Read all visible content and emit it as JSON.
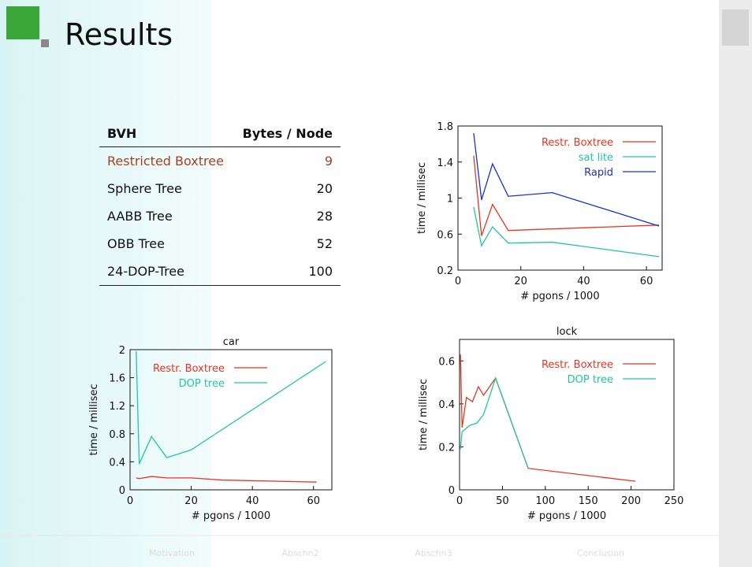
{
  "header": {
    "title": "Results"
  },
  "table": {
    "header": [
      "BVH",
      "Bytes / Node"
    ],
    "rows": [
      [
        "Restricted Boxtree",
        9
      ],
      [
        "Sphere Tree",
        20
      ],
      [
        "AABB Tree",
        28
      ],
      [
        "OBB Tree",
        52
      ],
      [
        "24-DOP-Tree",
        100
      ]
    ]
  },
  "chart_data": [
    {
      "type": "line",
      "xlabel": "# pgons / 1000",
      "ylabel": "time / millisec",
      "xlim": [
        0,
        65
      ],
      "xticks": [
        0,
        20,
        40,
        60
      ],
      "ylim": [
        0.2,
        1.8
      ],
      "yticks": [
        0.2,
        0.6,
        1,
        1.4,
        1.8
      ],
      "series": [
        {
          "name": "Restr. Boxtree",
          "color": "#e8351f",
          "x": [
            5,
            7.5,
            11,
            16,
            64
          ],
          "values": [
            1.47,
            0.58,
            0.93,
            0.64,
            0.7
          ]
        },
        {
          "name": "sat lite",
          "color": "#1fc99a",
          "x": [
            5,
            7.5,
            11,
            16,
            30,
            64
          ],
          "values": [
            0.9,
            0.47,
            0.68,
            0.5,
            0.51,
            0.35
          ]
        },
        {
          "name": "Rapid",
          "color": "#1a2fd6",
          "x": [
            5,
            7.5,
            11,
            16,
            30,
            64
          ],
          "values": [
            1.72,
            0.98,
            1.38,
            1.02,
            1.06,
            0.69
          ]
        }
      ]
    },
    {
      "type": "line",
      "title": "car",
      "xlabel": "# pgons / 1000",
      "ylabel": "time / millisec",
      "xlim": [
        0,
        66
      ],
      "xticks": [
        0,
        20,
        40,
        60
      ],
      "ylim": [
        0,
        2
      ],
      "yticks": [
        0,
        0.4,
        0.8,
        1.2,
        1.6,
        2
      ],
      "series": [
        {
          "name": "Restr. Boxtree",
          "color": "#e8351f",
          "x": [
            2,
            3,
            7,
            12,
            20,
            30,
            61
          ],
          "values": [
            0.17,
            0.16,
            0.19,
            0.17,
            0.17,
            0.14,
            0.11
          ]
        },
        {
          "name": "DOP tree",
          "color": "#1fc99a",
          "x": [
            2,
            3,
            7,
            12,
            20,
            64
          ],
          "values": [
            1.98,
            0.37,
            0.76,
            0.46,
            0.57,
            1.83
          ]
        }
      ]
    },
    {
      "type": "line",
      "title": "lock",
      "xlabel": "# pgons / 1000",
      "ylabel": "time / millisec",
      "xlim": [
        0,
        250
      ],
      "xticks": [
        0,
        50,
        100,
        150,
        200,
        250
      ],
      "ylim": [
        0,
        0.7
      ],
      "yticks": [
        0,
        0.2,
        0.4,
        0.6
      ],
      "series": [
        {
          "name": "Restr. Boxtree",
          "color": "#e8351f",
          "x": [
            1,
            3,
            8,
            15,
            22,
            28,
            42,
            80,
            205
          ],
          "values": [
            0.63,
            0.29,
            0.43,
            0.41,
            0.48,
            0.44,
            0.52,
            0.1,
            0.04
          ]
        },
        {
          "name": "DOP tree",
          "color": "#1fc99a",
          "x": [
            1,
            3,
            12,
            20,
            28,
            42,
            80
          ],
          "values": [
            0.19,
            0.27,
            0.3,
            0.31,
            0.35,
            0.52,
            0.1
          ]
        }
      ]
    }
  ],
  "nav": [
    "Motivation",
    "Abschn2",
    "Abschn3",
    "Conclusion"
  ]
}
